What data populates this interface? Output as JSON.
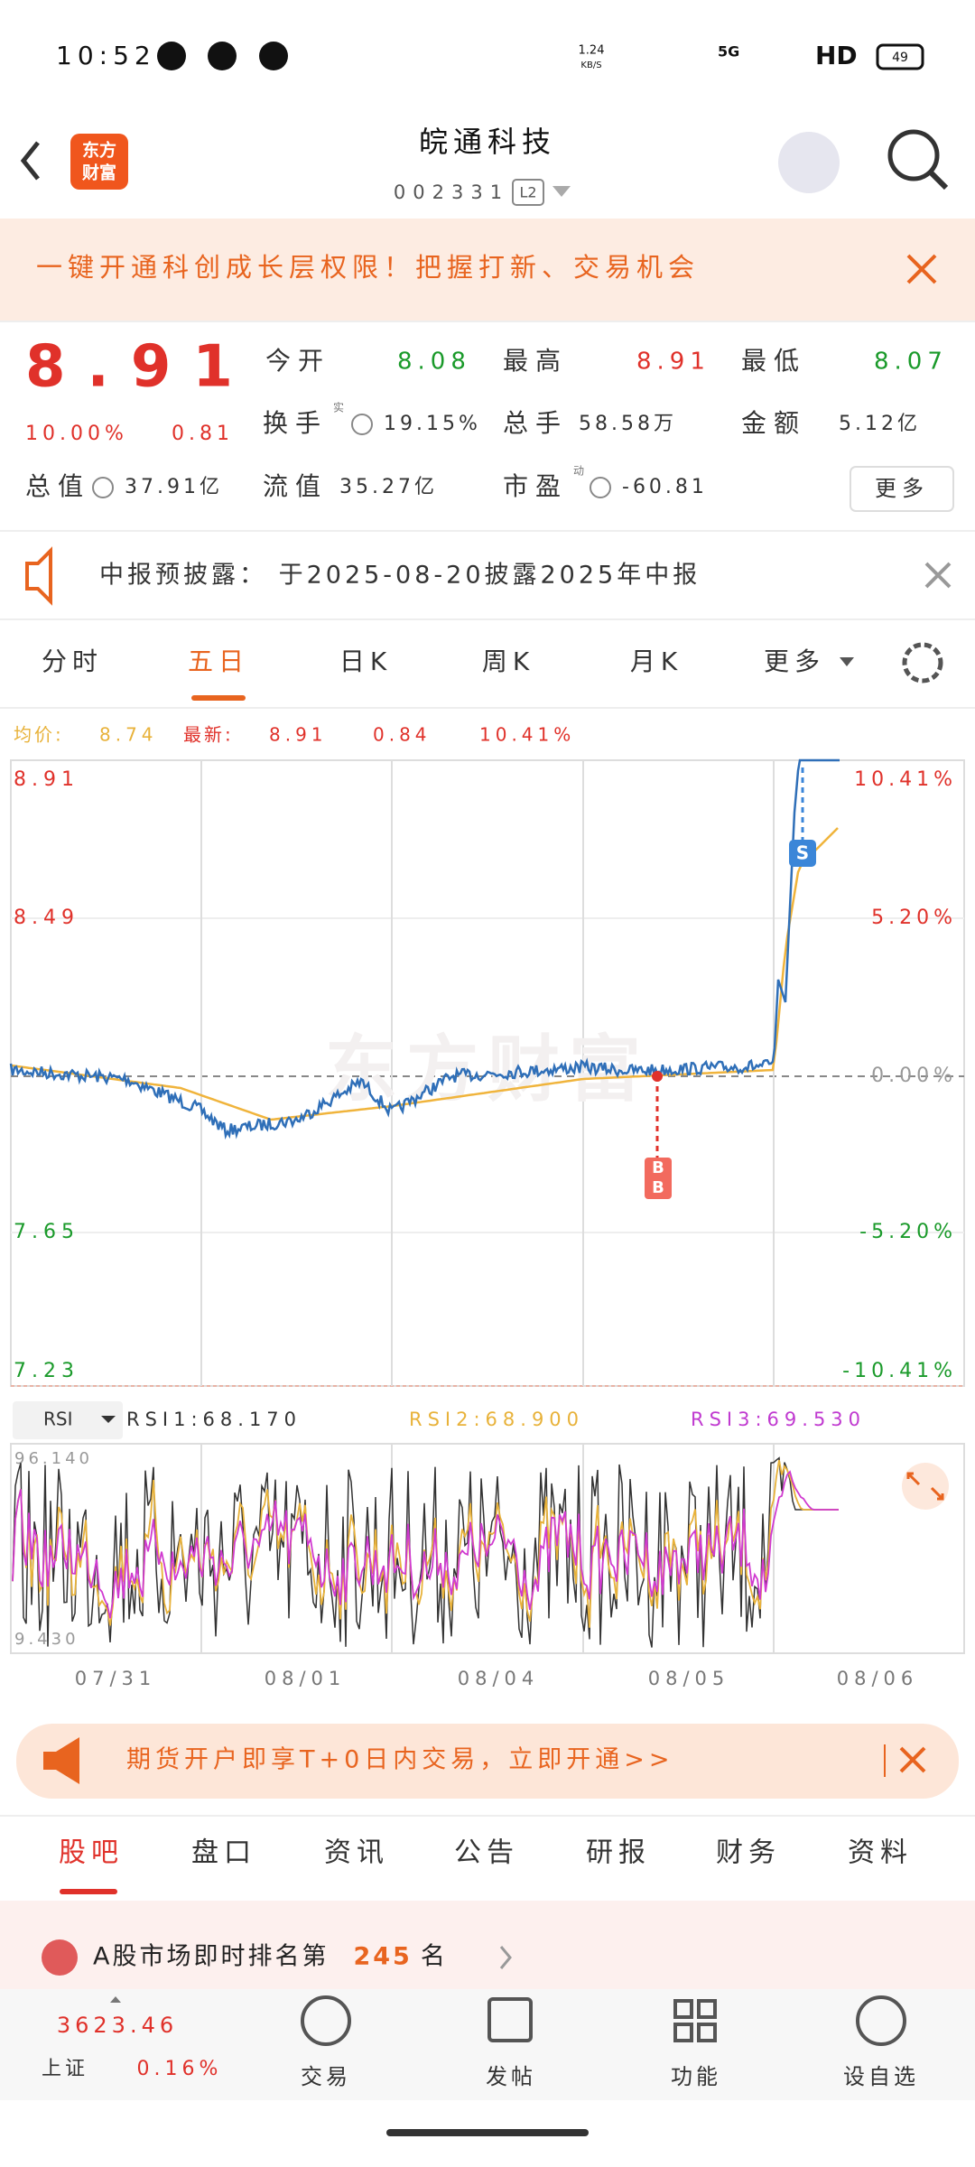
{
  "status_bar": {
    "time": "10:52",
    "net_speed": "1.24",
    "net_unit": "KB/S",
    "network": "5G",
    "hd": "HD",
    "battery": "49"
  },
  "header": {
    "logo_top": "东方",
    "logo_bottom": "财富",
    "title": "皖通科技",
    "code": "002331",
    "level": "L2"
  },
  "banner": {
    "text": "一键开通科创成长层权限！把握打新、交易机会"
  },
  "quote": {
    "price": "8.91",
    "change_pct": "10.00%",
    "change": "0.81",
    "rows": [
      [
        {
          "label": "今开",
          "value": "8.08"
        },
        {
          "label": "最高",
          "value": "8.91"
        },
        {
          "label": "最低",
          "value": "8.07"
        }
      ],
      [
        {
          "label": "换手",
          "sup": "实",
          "value": "19.15%"
        },
        {
          "label": "总手",
          "value": "58.58万"
        },
        {
          "label": "金额",
          "value": "5.12亿"
        }
      ],
      [
        {
          "label": "总值",
          "value": "37.91亿"
        },
        {
          "label": "流值",
          "value": "35.27亿"
        },
        {
          "label": "市盈",
          "sup": "动",
          "value": "-60.81"
        }
      ]
    ],
    "more": "更多"
  },
  "notice": {
    "text": "中报预披露： 于2025-08-20披露2025年中报"
  },
  "chart_tabs": [
    "分时",
    "五日",
    "日K",
    "周K",
    "月K",
    "更多"
  ],
  "info_line": {
    "avg_label": "均价:",
    "avg": "8.74",
    "last_label": "最新:",
    "last": "8.91",
    "change": "0.84",
    "change_pct": "10.41%"
  },
  "price_chart": {
    "left_labels": [
      "8.91",
      "8.49",
      "7.65",
      "7.23"
    ],
    "right_labels": [
      "10.41%",
      "5.20%",
      "0.00%",
      "-5.20%",
      "-10.41%"
    ],
    "watermark": "东方财富",
    "buy_marker": "B",
    "sell_marker": "S"
  },
  "rsi": {
    "selector": "RSI",
    "rsi1": "RSI1:68.170",
    "rsi2": "RSI2:68.900",
    "rsi3": "RSI3:69.530",
    "top_label": "96.140",
    "bottom_label": "9.430"
  },
  "dates": [
    "07/31",
    "08/01",
    "08/04",
    "08/05",
    "08/06"
  ],
  "futures_banner": {
    "text": "期货开户即享T+0日内交易，立即开通>>"
  },
  "bottom_tabs": [
    "股吧",
    "盘口",
    "资讯",
    "公告",
    "研报",
    "财务",
    "资料"
  ],
  "ranking": {
    "prefix": "A股市场即时排名第",
    "rank": "245",
    "suffix": "名"
  },
  "nav": {
    "index_value": "3623.46",
    "index_name": "上证",
    "index_change": "0.16%",
    "items": [
      "交易",
      "发帖",
      "功能",
      "设自选"
    ]
  }
}
